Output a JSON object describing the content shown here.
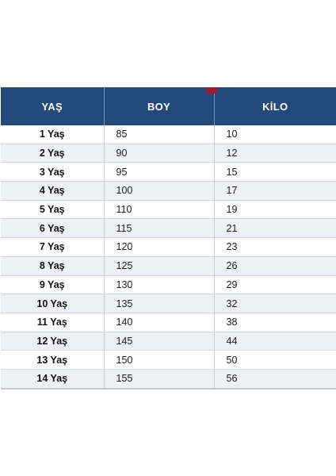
{
  "table": {
    "headers": [
      "YAŞ",
      "BOY",
      "KİLO"
    ],
    "rows": [
      [
        "1 Yaş",
        "85",
        "10"
      ],
      [
        "2 Yaş",
        "90",
        "12"
      ],
      [
        "3 Yaş",
        "95",
        "15"
      ],
      [
        "4 Yaş",
        "100",
        "17"
      ],
      [
        "5 Yaş",
        "110",
        "19"
      ],
      [
        "6 Yaş",
        "115",
        "21"
      ],
      [
        "7 Yaş",
        "120",
        "23"
      ],
      [
        "8 Yaş",
        "125",
        "26"
      ],
      [
        "9 Yaş",
        "130",
        "29"
      ],
      [
        "10 Yaş",
        "135",
        "32"
      ],
      [
        "11 Yaş",
        "140",
        "38"
      ],
      [
        "12 Yaş",
        "145",
        "44"
      ],
      [
        "13 Yaş",
        "150",
        "50"
      ],
      [
        "14 Yaş",
        "155",
        "56"
      ]
    ]
  },
  "colors": {
    "header_background": "#244a7c",
    "header_text": "#ffffff",
    "accent_marker": "#9b1b30",
    "alternate_row": "#eef0f3"
  }
}
